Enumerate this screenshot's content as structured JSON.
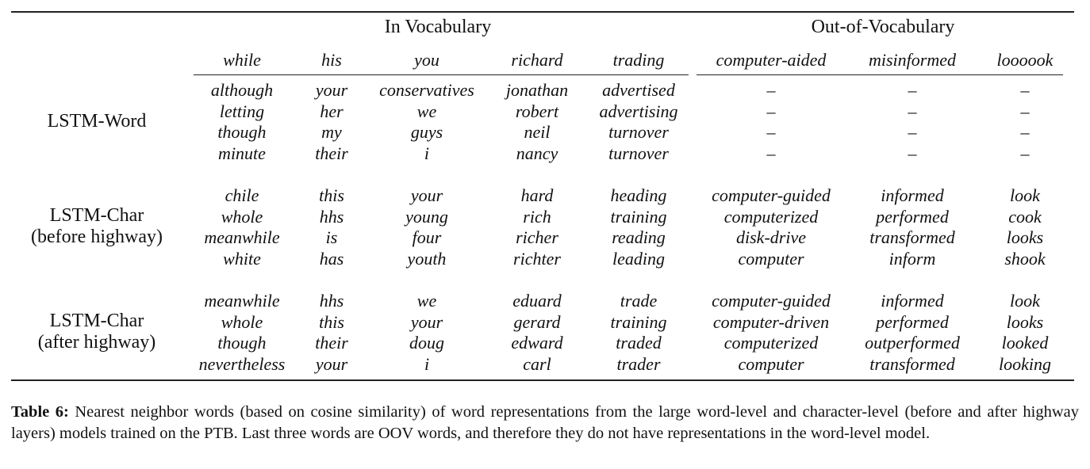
{
  "table": {
    "group_headers": {
      "in_vocab": "In Vocabulary",
      "oov": "Out-of-Vocabulary"
    },
    "columns": [
      "while",
      "his",
      "you",
      "richard",
      "trading",
      "computer-aided",
      "misinformed",
      "loooook"
    ],
    "rows": [
      {
        "label_lines": [
          "LSTM-Word"
        ],
        "cells": [
          [
            "although",
            "letting",
            "though",
            "minute"
          ],
          [
            "your",
            "her",
            "my",
            "their"
          ],
          [
            "conservatives",
            "we",
            "guys",
            "i"
          ],
          [
            "jonathan",
            "robert",
            "neil",
            "nancy"
          ],
          [
            "advertised",
            "advertising",
            "turnover",
            "turnover"
          ],
          [
            "–",
            "–",
            "–",
            "–"
          ],
          [
            "–",
            "–",
            "–",
            "–"
          ],
          [
            "–",
            "–",
            "–",
            "–"
          ]
        ]
      },
      {
        "label_lines": [
          "LSTM-Char",
          "(before highway)"
        ],
        "cells": [
          [
            "chile",
            "whole",
            "meanwhile",
            "white"
          ],
          [
            "this",
            "hhs",
            "is",
            "has"
          ],
          [
            "your",
            "young",
            "four",
            "youth"
          ],
          [
            "hard",
            "rich",
            "richer",
            "richter"
          ],
          [
            "heading",
            "training",
            "reading",
            "leading"
          ],
          [
            "computer-guided",
            "computerized",
            "disk-drive",
            "computer"
          ],
          [
            "informed",
            "performed",
            "transformed",
            "inform"
          ],
          [
            "look",
            "cook",
            "looks",
            "shook"
          ]
        ]
      },
      {
        "label_lines": [
          "LSTM-Char",
          "(after highway)"
        ],
        "cells": [
          [
            "meanwhile",
            "whole",
            "though",
            "nevertheless"
          ],
          [
            "hhs",
            "this",
            "their",
            "your"
          ],
          [
            "we",
            "your",
            "doug",
            "i"
          ],
          [
            "eduard",
            "gerard",
            "edward",
            "carl"
          ],
          [
            "trade",
            "training",
            "traded",
            "trader"
          ],
          [
            "computer-guided",
            "computer-driven",
            "computerized",
            "computer"
          ],
          [
            "informed",
            "performed",
            "outperformed",
            "transformed"
          ],
          [
            "look",
            "looks",
            "looked",
            "looking"
          ]
        ]
      }
    ]
  },
  "caption": {
    "label": "Table 6:",
    "text": " Nearest neighbor words (based on cosine similarity) of word representations from the large word-level and character-level (before and after highway layers) models trained on the PTB. Last three words are OOV words, and therefore they do not have representations in the word-level model."
  }
}
